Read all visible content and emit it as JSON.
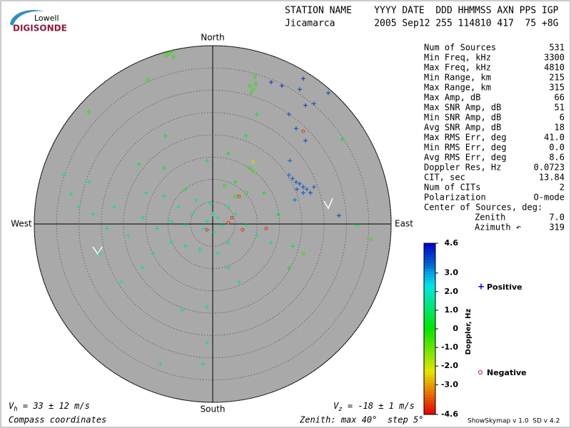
{
  "logo": {
    "top": "Lowell",
    "bottom": "DIGISONDE"
  },
  "header": {
    "labels": "STATION NAME    YYYY DATE  DDD HHMMSS AXN PPS IGP",
    "values": "Jicamarca       2005 Sep12 255 114810 417  75 +8G"
  },
  "stats": {
    "rows": [
      [
        "Num of Sources",
        "531"
      ],
      [
        "Min Freq, kHz",
        "3300"
      ],
      [
        "Max Freq, kHz",
        "4810"
      ],
      [
        "Min Range, km",
        "215"
      ],
      [
        "Max Range, km",
        "315"
      ],
      [
        "Max Amp, dB",
        "66"
      ],
      [
        "Max SNR Amp, dB",
        "51"
      ],
      [
        "Min SNR Amp, dB",
        "6"
      ],
      [
        "Avg SNR Amp, dB",
        "18"
      ],
      [
        "Max RMS Err, deg",
        "41.0"
      ],
      [
        "Min RMS Err, deg",
        "0.0"
      ],
      [
        "Avg RMS Err, deg",
        "8.6"
      ],
      [
        "Doppler Res, Hz",
        "0.0723"
      ],
      [
        "CIT, sec",
        "13.84"
      ],
      [
        "Num of CITs",
        "2"
      ],
      [
        "Polarization",
        "O-mode"
      ]
    ],
    "center_heading": "Center of Sources, deg:",
    "center_rows": [
      [
        "Zenith",
        "7.0"
      ],
      [
        "Azimuth ↶",
        "319"
      ]
    ]
  },
  "footer": {
    "vh": {
      "symbol": "V",
      "subscript": "h",
      "text": " = 33 ± 12 m/s"
    },
    "vz": {
      "symbol": "V",
      "subscript": "z",
      "text": " = -18 ± 1 m/s"
    },
    "coords": "Compass coordinates",
    "zenith": "Zenith: max 40°  step 5°",
    "version": "ShowSkymap v 1.0  SD v 4.2"
  },
  "chart_data": {
    "type": "skymap",
    "compass": {
      "north": "North",
      "south": "South",
      "east": "East",
      "west": "West"
    },
    "rlim": [
      0,
      40
    ],
    "rticks": [
      5,
      10,
      15,
      20,
      25,
      30,
      35,
      40
    ],
    "clim": [
      -4.6,
      4.6
    ],
    "cticks": [
      4.6,
      {
        "value": 3,
        "label": "3.0"
      },
      {
        "value": 2,
        "label": "2.0"
      },
      {
        "value": 1,
        "label": "1.0"
      },
      0,
      {
        "value": -1,
        "label": "-1.0"
      },
      {
        "value": -2,
        "label": "-2.0"
      },
      {
        "value": -3,
        "label": "-3.0"
      },
      -4.6
    ],
    "colorbar_label": "Doppler, Hz",
    "legend": {
      "positive": "Positive",
      "negative": "Negative",
      "positive_color": "#0000cc",
      "negative_color": "#cc0000"
    },
    "points": {
      "x": [
        0,
        1.1,
        -1.3,
        1.9,
        -2.1,
        0.3,
        -4.5,
        -6.1,
        -9.3,
        -12.5,
        -15.7,
        -18.9,
        -23.7,
        -26.9,
        -30.1,
        -33.3,
        -27.7,
        -22.1,
        -14.9,
        -10.9,
        -7.7,
        -3.7,
        -0.5,
        3.5,
        5.1,
        7.5,
        9.9,
        13.1,
        3.5,
        1.1,
        -2.9,
        -6.1,
        -9.3,
        -13.3,
        -15.7,
        -20.5,
        -6.9,
        -1.3,
        3.5,
        5.9,
        -2.1,
        -11.7,
        -1.3,
        -25.3,
        -31.7,
        3.5,
        7.5,
        -1.3,
        -6.1,
        11.5,
        14.7,
        17.9,
        17.1,
        9.9,
        29.1,
        32.3,
        -10.6,
        -16.5,
        -10.9,
        5.1,
        19.5,
        20.3,
        21.1,
        18.7,
        21.9,
        17.9,
        17.1,
        18.9,
        20.3,
        22.7,
        18.4,
        17.3,
        17.1,
        15.5,
        20.3,
        19.5,
        20.8,
        22.7,
        25.9,
        18.7,
        20.8,
        28.3,
        13.1,
        8.3,
        9.1,
        8.6,
        9.6,
        9.4,
        -9.9,
        -9.3,
        -10.6,
        -8.8,
        9.1,
        8.3,
        7.5,
        2.7,
        5.1,
        -27.7,
        -14.6,
        20.3,
        35.5,
        9.1,
        5.9,
        6.7,
        -1.3,
        3.5,
        12,
        20.3,
        4.3
      ],
      "y": [
        2.2,
        1.4,
        0.6,
        -0.2,
        -1,
        -1.8,
        2.2,
        -0.2,
        0.6,
        -1,
        1.4,
        -2.6,
        -1,
        2.2,
        3.8,
        11,
        9.4,
        3.8,
        7,
        6.2,
        3.8,
        5.4,
        4.6,
        3.8,
        2.2,
        -0.2,
        -2.6,
        -4.2,
        -4.2,
        -6.6,
        -5.8,
        -5,
        -4.2,
        -6.6,
        -9.8,
        -13,
        -19.4,
        -18.6,
        -9.8,
        -13,
        -31.4,
        -31.4,
        -26.6,
        -6.6,
        6.7,
        15.8,
        19.8,
        14.2,
        7.8,
        7,
        2.2,
        -5,
        -9.8,
        24.6,
        19,
        -0.2,
        19.8,
        13.4,
        12.6,
        9.4,
        9,
        8.3,
        7.8,
        9.4,
        7,
        10.2,
        11,
        7.8,
        7,
        8.3,
        5.4,
        14.2,
        24.6,
        31,
        32.6,
        30.2,
        26.6,
        27,
        29.4,
        21.4,
        18.7,
        1.9,
        31.8,
        31,
        30.2,
        29.4,
        31.4,
        33,
        38.2,
        38.7,
        37.8,
        37.4,
        11.8,
        12.6,
        7,
        8.6,
        6.2,
        25.1,
        32.3,
        -6.6,
        -3.4,
        13.9,
        6.2,
        -1.3,
        -1.3,
        0.3,
        -1,
        20.8,
        1.4
      ],
      "doppler": [
        1.3,
        1.4,
        1.2,
        1.3,
        1.5,
        1.3,
        1.2,
        1.4,
        1.3,
        1.2,
        1.3,
        1.4,
        1.2,
        1.3,
        1.1,
        1.2,
        1.3,
        1.4,
        1.3,
        1.2,
        1.3,
        1.4,
        1.5,
        1.3,
        1.2,
        1.3,
        1.1,
        1.0,
        1.3,
        1.4,
        1.3,
        1.2,
        1.3,
        1.2,
        1.4,
        1.3,
        1.2,
        1.3,
        1.2,
        1.1,
        1.3,
        1.2,
        1.3,
        1.2,
        1.1,
        0.6,
        0.5,
        0.7,
        0.6,
        0.4,
        0.5,
        0.6,
        0.5,
        0.6,
        0.5,
        0.7,
        0.6,
        0.5,
        0.6,
        0.5,
        3.6,
        3.7,
        3.5,
        3.6,
        3.8,
        3.6,
        3.4,
        3.6,
        3.7,
        3.6,
        3.3,
        3.5,
        3.8,
        4.0,
        4.1,
        3.9,
        4.0,
        3.8,
        3.9,
        3.7,
        3.8,
        3.9,
        4.0,
        -0.3,
        -0.4,
        -0.3,
        -0.2,
        -0.3,
        -0.4,
        -0.3,
        -0.5,
        -0.3,
        -0.4,
        -0.3,
        -0.2,
        -0.3,
        -0.4,
        -0.2,
        -0.3,
        -0.4,
        -0.3,
        -2.0,
        -4.0,
        -4.1,
        -4.2,
        -4.0,
        -4.1,
        -4.0,
        -4.2
      ]
    }
  }
}
